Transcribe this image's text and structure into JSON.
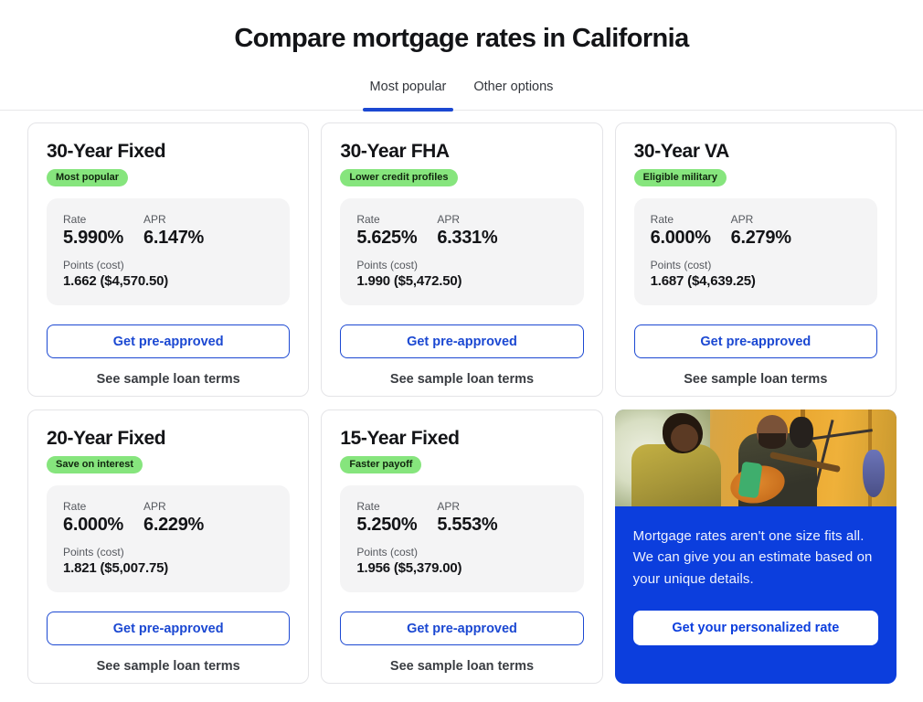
{
  "colors": {
    "accent_blue": "#1b48d2",
    "promo_blue": "#0c3edd",
    "badge_green": "#86e57d",
    "panel_gray": "#f4f4f5"
  },
  "header": {
    "title": "Compare mortgage rates in California"
  },
  "tabs": [
    {
      "label": "Most popular",
      "active": true
    },
    {
      "label": "Other options",
      "active": false
    }
  ],
  "labels": {
    "rate": "Rate",
    "apr": "APR",
    "points": "Points (cost)",
    "cta": "Get pre-approved",
    "terms_link": "See sample loan terms"
  },
  "cards": [
    {
      "title": "30-Year Fixed",
      "badge": "Most popular",
      "rate": "5.990%",
      "apr": "6.147%",
      "points": "1.662 ($4,570.50)"
    },
    {
      "title": "30-Year FHA",
      "badge": "Lower credit profiles",
      "rate": "5.625%",
      "apr": "6.331%",
      "points": "1.990 ($5,472.50)"
    },
    {
      "title": "30-Year VA",
      "badge": "Eligible military",
      "rate": "6.000%",
      "apr": "6.279%",
      "points": "1.687 ($4,639.25)"
    },
    {
      "title": "20-Year Fixed",
      "badge": "Save on interest",
      "rate": "6.000%",
      "apr": "6.229%",
      "points": "1.821 ($5,007.75)"
    },
    {
      "title": "15-Year Fixed",
      "badge": "Faster payoff",
      "rate": "5.250%",
      "apr": "5.553%",
      "points": "1.956 ($5,379.00)"
    }
  ],
  "promo": {
    "text": "Mortgage rates aren't one size fits all. We can give you an estimate based on your unique details.",
    "button": "Get your personalized rate"
  }
}
